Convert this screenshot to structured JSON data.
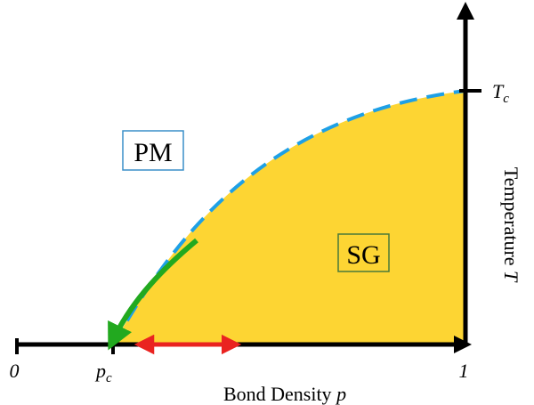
{
  "colors": {
    "background": "#ffffff",
    "spin_glass_fill": "#fdd533",
    "axis": "#000000",
    "boundary_dashed": "#1ea0e6",
    "green_arrow": "#22a91f",
    "red_arrow": "#ea2320",
    "label_box_border": "#3a8fc8",
    "sg_box_border": "#4a7a3a"
  },
  "regions": {
    "paramagnet": "PM",
    "spin_glass": "SG"
  },
  "x_axis": {
    "label": "Bond Density ",
    "variable": "p",
    "ticks": {
      "zero": "0",
      "critical": "p",
      "critical_sub": "c",
      "one": "1"
    }
  },
  "y_axis": {
    "label": "Temperature ",
    "variable": "T",
    "tick": "T",
    "tick_sub": "c"
  },
  "icons": {
    "x_axis_arrow": "arrow-right-icon",
    "y_axis_arrow": "arrow-up-icon",
    "green_arrow": "curved-arrow-icon",
    "red_arrow": "double-arrow-icon"
  }
}
